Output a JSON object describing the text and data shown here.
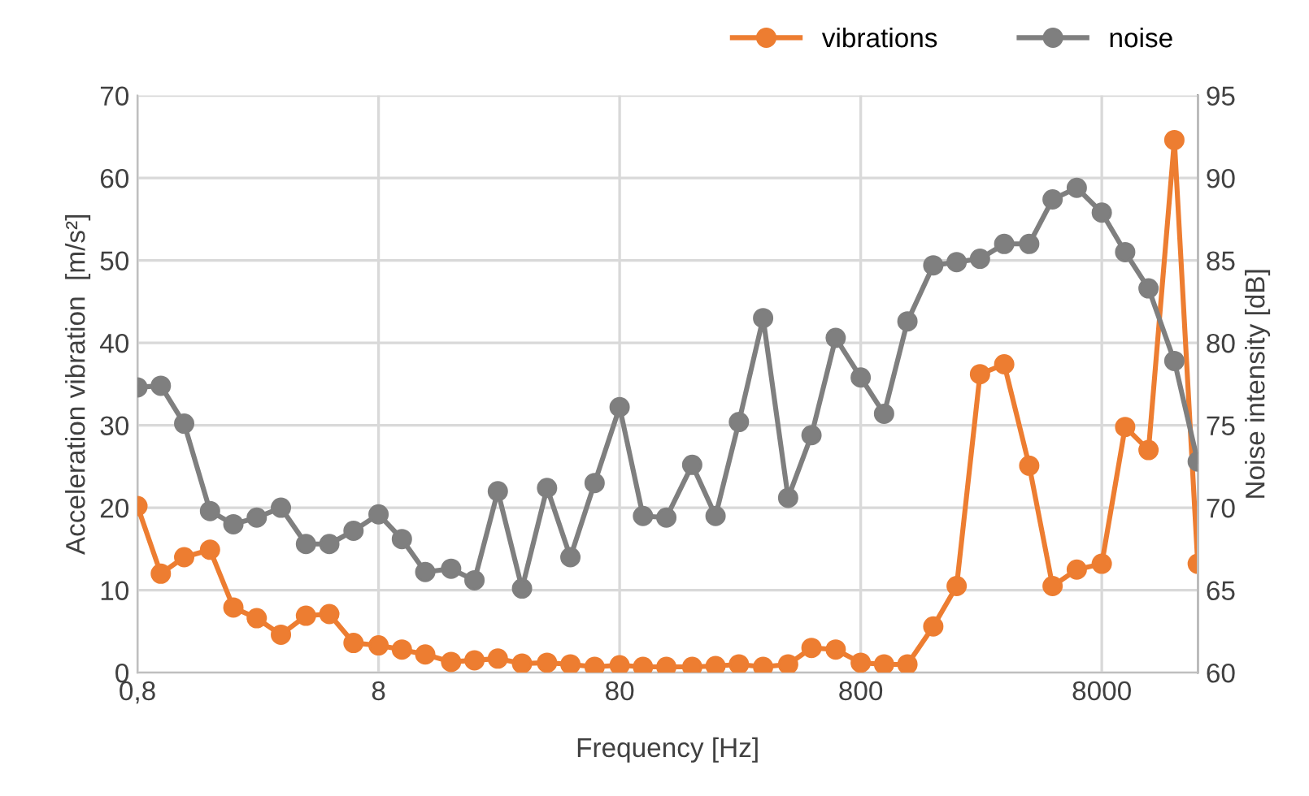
{
  "chart_data": {
    "type": "line",
    "xlabel": "Frequency [Hz]",
    "ylabel": "Acceleration vibration  [m/s²]",
    "y2label": "Noise intensity [dB]",
    "x": [
      0.8,
      1,
      1.25,
      1.6,
      2,
      2.5,
      3.15,
      4,
      5,
      6.3,
      8,
      10,
      12.5,
      16,
      20,
      25,
      31.5,
      40,
      50,
      63,
      80,
      100,
      125,
      160,
      200,
      250,
      315,
      400,
      500,
      630,
      800,
      1000,
      1250,
      1600,
      2000,
      2500,
      3150,
      4000,
      5000,
      6300,
      8000,
      10000,
      12500,
      16000,
      20000
    ],
    "series": [
      {
        "name": "vibrations",
        "color": "#ed7d31",
        "values": [
          20.2,
          12.0,
          14.0,
          14.9,
          7.9,
          6.6,
          4.6,
          6.9,
          7.1,
          3.6,
          3.3,
          2.8,
          2.2,
          1.3,
          1.5,
          1.7,
          1.1,
          1.2,
          1.0,
          0.7,
          0.9,
          0.7,
          0.7,
          0.7,
          0.8,
          1.0,
          0.7,
          1.0,
          3.0,
          2.8,
          1.2,
          1.0,
          1.0,
          5.6,
          10.5,
          36.2,
          37.4,
          25.1,
          10.5,
          12.5,
          13.2,
          29.8,
          27.0,
          64.6,
          13.2
        ]
      },
      {
        "name": "noise",
        "color": "#7f7f7f",
        "axis": "y2",
        "values": [
          77.3,
          77.4,
          75.1,
          69.8,
          69.0,
          69.4,
          70.0,
          67.8,
          67.8,
          68.6,
          69.6,
          68.1,
          66.1,
          66.3,
          65.6,
          71.0,
          65.1,
          71.2,
          67.0,
          71.5,
          76.1,
          69.5,
          69.4,
          72.6,
          69.5,
          75.2,
          81.5,
          70.6,
          74.4,
          80.3,
          77.9,
          75.7,
          81.3,
          84.7,
          84.9,
          85.1,
          86.0,
          86.0,
          88.7,
          89.4,
          87.9,
          85.5,
          83.3,
          78.9,
          72.8
        ]
      }
    ],
    "log": "x",
    "xlim": [
      0.8,
      20000
    ],
    "xticks": [
      {
        "value": 0.8,
        "label": "0,8"
      },
      8,
      80,
      800,
      8000
    ],
    "ylim": [
      0,
      70
    ],
    "yticks": [
      0,
      10,
      20,
      30,
      40,
      50,
      60,
      70
    ],
    "y2lim": [
      60,
      95
    ],
    "y2ticks": [
      60,
      65,
      70,
      75,
      80,
      85,
      90,
      95
    ],
    "grid": true,
    "legend": "top right",
    "marker": "circle",
    "line_style": "solid"
  }
}
